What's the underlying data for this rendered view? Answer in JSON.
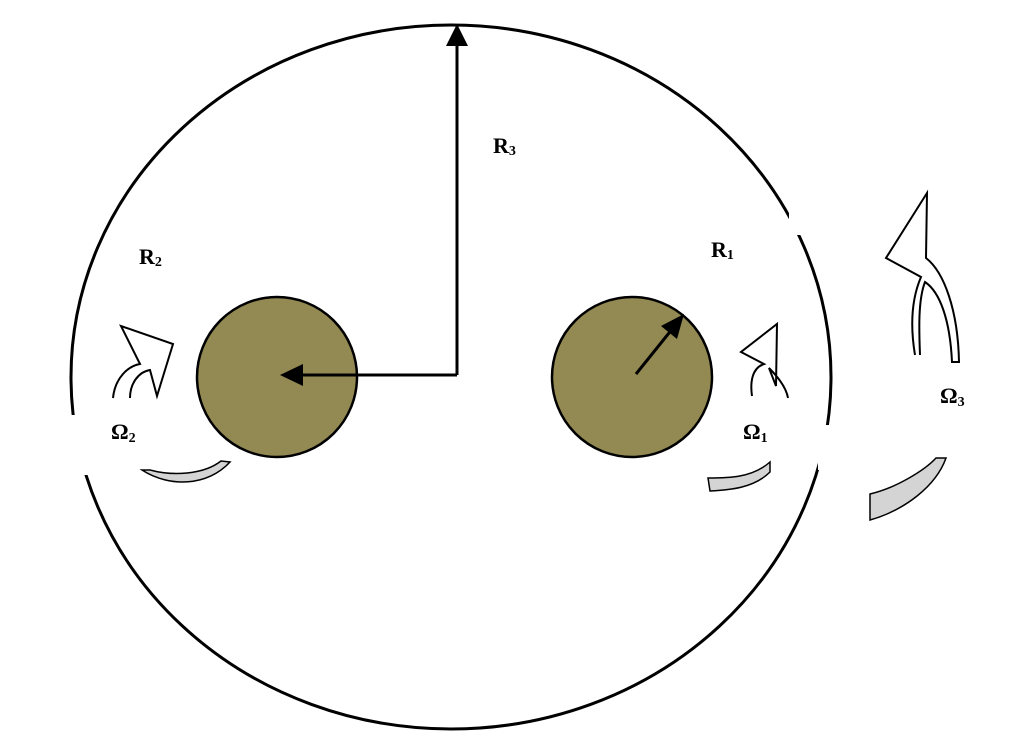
{
  "figure": {
    "labels": {
      "r3": {
        "main": "R",
        "sub": "3"
      },
      "r2": {
        "main": "R",
        "sub": "2"
      },
      "r1": {
        "main": "R",
        "sub": "1"
      },
      "omega2": {
        "main": "Ω",
        "sub": "2"
      },
      "omega1": {
        "main": "Ω",
        "sub": "1"
      },
      "omega3": {
        "main": "Ω",
        "sub": "3"
      }
    },
    "colors": {
      "cylinder_fill": "#938953",
      "arrow_tail_fill": "#d4d4d4",
      "stroke": "#000000",
      "background": "#ffffff"
    }
  }
}
